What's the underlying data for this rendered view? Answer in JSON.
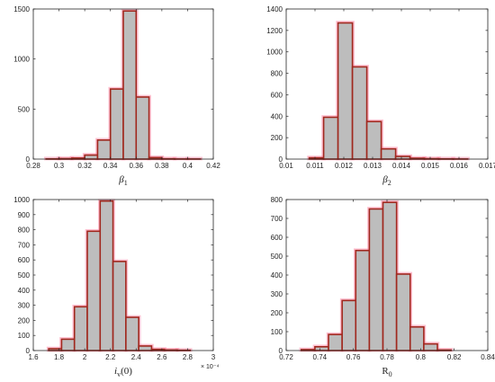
{
  "chart_data": [
    {
      "type": "bar",
      "subtype": "histogram",
      "panel": "top-left",
      "xlabel_base": "β",
      "xlabel_sub": "1",
      "xlim": [
        0.28,
        0.42
      ],
      "ylim": [
        0,
        1500
      ],
      "xticks": [
        "0.28",
        "0.3",
        "0.32",
        "0.34",
        "0.36",
        "0.38",
        "0.4",
        "0.42"
      ],
      "xtick_values": [
        0.28,
        0.3,
        0.32,
        0.34,
        0.36,
        0.38,
        0.4,
        0.42
      ],
      "yticks": [
        "0",
        "500",
        "1000",
        "1500"
      ],
      "ytick_values": [
        0,
        500,
        1000,
        1500
      ],
      "bin_edges": [
        0.29,
        0.3,
        0.31,
        0.32,
        0.33,
        0.34,
        0.35,
        0.36,
        0.37,
        0.38,
        0.39,
        0.4,
        0.41
      ],
      "counts": [
        2,
        5,
        10,
        40,
        190,
        700,
        1480,
        620,
        15,
        3,
        1,
        1
      ],
      "exponent": ""
    },
    {
      "type": "bar",
      "subtype": "histogram",
      "panel": "top-right",
      "xlabel_base": "β",
      "xlabel_sub": "2",
      "xlim": [
        0.01,
        0.017
      ],
      "ylim": [
        0,
        1400
      ],
      "xticks": [
        "0.01",
        "0.011",
        "0.012",
        "0.013",
        "0.014",
        "0.015",
        "0.016",
        "0.017"
      ],
      "xtick_values": [
        0.01,
        0.011,
        0.012,
        0.013,
        0.014,
        0.015,
        0.016,
        0.017
      ],
      "yticks": [
        "0",
        "200",
        "400",
        "600",
        "800",
        "1000",
        "1200",
        "1400"
      ],
      "ytick_values": [
        0,
        200,
        400,
        600,
        800,
        1000,
        1200,
        1400
      ],
      "bin_edges": [
        0.0108,
        0.0113,
        0.0118,
        0.0123,
        0.0128,
        0.0133,
        0.0138,
        0.0143,
        0.0148,
        0.0153,
        0.0158,
        0.0163
      ],
      "counts": [
        12,
        390,
        1270,
        860,
        350,
        95,
        25,
        8,
        4,
        2,
        1
      ],
      "exponent": ""
    },
    {
      "type": "bar",
      "subtype": "histogram",
      "panel": "bottom-left",
      "xlabel_base": "i",
      "xlabel_sub": "v",
      "xlabel_suffix": "(0)",
      "xlim": [
        1.6,
        3.0
      ],
      "ylim": [
        0,
        1000
      ],
      "xticks": [
        "1.6",
        "1.8",
        "2",
        "2.2",
        "2.4",
        "2.6",
        "2.8",
        "3"
      ],
      "xtick_values": [
        1.6,
        1.8,
        2.0,
        2.2,
        2.4,
        2.6,
        2.8,
        3.0
      ],
      "yticks": [
        "0",
        "100",
        "200",
        "300",
        "400",
        "500",
        "600",
        "700",
        "800",
        "900",
        "1000"
      ],
      "ytick_values": [
        0,
        100,
        200,
        300,
        400,
        500,
        600,
        700,
        800,
        900,
        1000
      ],
      "bin_edges": [
        1.72,
        1.82,
        1.92,
        2.02,
        2.12,
        2.22,
        2.32,
        2.42,
        2.52,
        2.62,
        2.72,
        2.82
      ],
      "counts": [
        12,
        75,
        290,
        790,
        990,
        590,
        220,
        30,
        8,
        4,
        2
      ],
      "exponent": "× 10⁻⁴"
    },
    {
      "type": "bar",
      "subtype": "histogram",
      "panel": "bottom-right",
      "xlabel_base": "R",
      "xlabel_sub": "0",
      "xlim": [
        0.72,
        0.84
      ],
      "ylim": [
        0,
        800
      ],
      "xticks": [
        "0.72",
        "0.74",
        "0.76",
        "0.78",
        "0.8",
        "0.82",
        "0.84"
      ],
      "xtick_values": [
        0.72,
        0.74,
        0.76,
        0.78,
        0.8,
        0.82,
        0.84
      ],
      "yticks": [
        "0",
        "100",
        "200",
        "300",
        "400",
        "500",
        "600",
        "700",
        "800"
      ],
      "ytick_values": [
        0,
        100,
        200,
        300,
        400,
        500,
        600,
        700,
        800
      ],
      "bin_edges": [
        0.729,
        0.7371,
        0.7452,
        0.7533,
        0.7614,
        0.7695,
        0.7776,
        0.7857,
        0.7938,
        0.8019,
        0.81,
        0.8181
      ],
      "counts": [
        5,
        20,
        85,
        265,
        530,
        750,
        785,
        405,
        125,
        35,
        3
      ],
      "exponent": ""
    }
  ],
  "colors": {
    "bar_fill": "#bdbdbd",
    "bar_edge": "#a0281e",
    "bar_glow": "#ff8aa8",
    "axis": "#262626",
    "text": "#222222"
  }
}
